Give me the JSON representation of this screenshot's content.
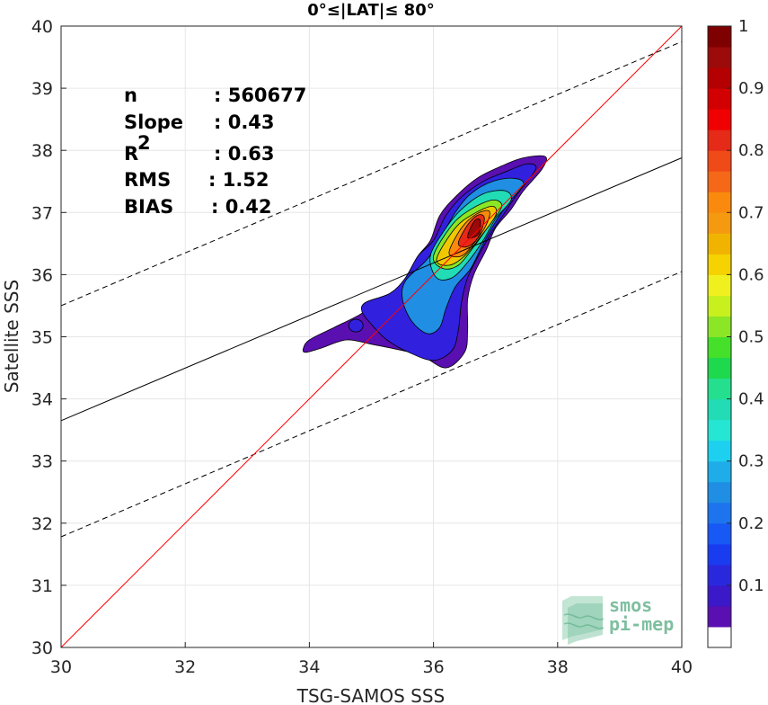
{
  "chart_data": {
    "type": "contour",
    "title": "0°≤|LAT|≤ 80°",
    "xlabel": "TSG-SAMOS SSS",
    "ylabel": "Satellite SSS",
    "xlim": [
      30,
      40
    ],
    "ylim": [
      30,
      40
    ],
    "xticks": [
      "30",
      "32",
      "34",
      "36",
      "38",
      "40"
    ],
    "yticks": [
      "30",
      "31",
      "32",
      "33",
      "34",
      "35",
      "36",
      "37",
      "38",
      "39",
      "40"
    ],
    "grid": true,
    "stats": [
      {
        "key": "n",
        "value": ": 560677"
      },
      {
        "key": "Slope",
        "value": ": 0.43"
      },
      {
        "key": "R",
        "sup": "2",
        "value": ": 0.63"
      },
      {
        "key": "RMS",
        "value": ": 1.52"
      },
      {
        "key": "BIAS",
        "value": ": 0.42"
      }
    ],
    "lines": {
      "one_to_one": {
        "x": [
          30,
          40
        ],
        "y": [
          30,
          40
        ],
        "color": "#ff0000"
      },
      "regression": {
        "x": [
          30,
          40
        ],
        "y": [
          33.65,
          37.88
        ],
        "color": "#000000"
      },
      "upper_bound": {
        "x": [
          30,
          40
        ],
        "y": [
          35.5,
          39.75
        ],
        "color": "#000000",
        "style": "dashed"
      },
      "lower_bound": {
        "x": [
          30,
          40
        ],
        "y": [
          31.78,
          36.05
        ],
        "color": "#000000",
        "style": "dashed"
      }
    },
    "contours": [
      {
        "level": 0.05,
        "color": "#5a0fb0",
        "points": [
          [
            33.9,
            34.8
          ],
          [
            34.0,
            34.95
          ],
          [
            34.4,
            35.15
          ],
          [
            34.8,
            35.35
          ],
          [
            35.1,
            35.55
          ],
          [
            35.35,
            35.7
          ],
          [
            35.55,
            35.95
          ],
          [
            35.75,
            36.3
          ],
          [
            35.95,
            36.55
          ],
          [
            36.1,
            36.95
          ],
          [
            36.35,
            37.25
          ],
          [
            36.7,
            37.55
          ],
          [
            37.1,
            37.75
          ],
          [
            37.45,
            37.88
          ],
          [
            37.8,
            37.9
          ],
          [
            37.75,
            37.7
          ],
          [
            37.45,
            37.35
          ],
          [
            37.25,
            37.05
          ],
          [
            37.0,
            36.75
          ],
          [
            36.85,
            36.4
          ],
          [
            36.65,
            36.0
          ],
          [
            36.55,
            35.6
          ],
          [
            36.55,
            35.1
          ],
          [
            36.5,
            34.75
          ],
          [
            36.2,
            34.5
          ],
          [
            35.8,
            34.7
          ],
          [
            35.4,
            34.8
          ],
          [
            35.0,
            34.88
          ],
          [
            34.6,
            34.95
          ],
          [
            34.2,
            34.82
          ],
          [
            33.95,
            34.75
          ]
        ]
      },
      {
        "level": 0.15,
        "color": "#3120dd",
        "points": [
          [
            34.9,
            35.55
          ],
          [
            35.3,
            35.7
          ],
          [
            35.55,
            35.95
          ],
          [
            35.75,
            36.3
          ],
          [
            36.0,
            36.55
          ],
          [
            36.2,
            36.95
          ],
          [
            36.45,
            37.25
          ],
          [
            36.8,
            37.5
          ],
          [
            37.15,
            37.65
          ],
          [
            37.5,
            37.78
          ],
          [
            37.65,
            37.7
          ],
          [
            37.35,
            37.3
          ],
          [
            37.15,
            37.0
          ],
          [
            36.95,
            36.7
          ],
          [
            36.75,
            36.35
          ],
          [
            36.55,
            35.95
          ],
          [
            36.45,
            35.55
          ],
          [
            36.4,
            35.1
          ],
          [
            36.3,
            34.78
          ],
          [
            36.0,
            34.62
          ],
          [
            35.6,
            34.75
          ],
          [
            35.25,
            34.95
          ],
          [
            35.0,
            35.2
          ],
          [
            34.85,
            35.4
          ]
        ]
      },
      {
        "level": 0.3,
        "color": "#1f8ee3",
        "points": [
          [
            35.55,
            35.9
          ],
          [
            35.9,
            36.25
          ],
          [
            36.15,
            36.65
          ],
          [
            36.35,
            37.0
          ],
          [
            36.6,
            37.3
          ],
          [
            36.95,
            37.5
          ],
          [
            37.3,
            37.55
          ],
          [
            37.45,
            37.45
          ],
          [
            37.2,
            37.15
          ],
          [
            37.0,
            36.85
          ],
          [
            36.8,
            36.5
          ],
          [
            36.6,
            36.1
          ],
          [
            36.35,
            35.8
          ],
          [
            36.2,
            35.45
          ],
          [
            36.1,
            35.15
          ],
          [
            35.9,
            35.05
          ],
          [
            35.65,
            35.25
          ],
          [
            35.5,
            35.6
          ]
        ]
      },
      {
        "level": 0.45,
        "color": "#21dcb5",
        "points": [
          [
            35.95,
            36.3
          ],
          [
            36.2,
            36.75
          ],
          [
            36.45,
            37.05
          ],
          [
            36.8,
            37.3
          ],
          [
            37.15,
            37.35
          ],
          [
            37.25,
            37.2
          ],
          [
            37.0,
            36.9
          ],
          [
            36.8,
            36.55
          ],
          [
            36.55,
            36.2
          ],
          [
            36.3,
            35.95
          ],
          [
            36.05,
            35.95
          ]
        ]
      },
      {
        "level": 0.55,
        "color": "#8be626",
        "points": [
          [
            36.0,
            36.3
          ],
          [
            36.3,
            36.8
          ],
          [
            36.6,
            37.05
          ],
          [
            36.95,
            37.2
          ],
          [
            37.1,
            37.1
          ],
          [
            36.9,
            36.8
          ],
          [
            36.65,
            36.45
          ],
          [
            36.4,
            36.15
          ],
          [
            36.15,
            36.1
          ]
        ]
      },
      {
        "level": 0.65,
        "color": "#f0c800",
        "points": [
          [
            36.05,
            36.25
          ],
          [
            36.35,
            36.75
          ],
          [
            36.65,
            36.98
          ],
          [
            36.95,
            37.1
          ],
          [
            37.0,
            36.95
          ],
          [
            36.75,
            36.6
          ],
          [
            36.5,
            36.3
          ],
          [
            36.25,
            36.15
          ]
        ]
      },
      {
        "level": 0.75,
        "color": "#f98a0e",
        "points": [
          [
            36.25,
            36.35
          ],
          [
            36.45,
            36.75
          ],
          [
            36.7,
            36.98
          ],
          [
            36.9,
            37.02
          ],
          [
            36.85,
            36.8
          ],
          [
            36.65,
            36.5
          ],
          [
            36.45,
            36.3
          ]
        ]
      },
      {
        "level": 0.85,
        "color": "#e52a18",
        "points": [
          [
            36.4,
            36.5
          ],
          [
            36.55,
            36.8
          ],
          [
            36.72,
            36.96
          ],
          [
            36.82,
            36.9
          ],
          [
            36.72,
            36.6
          ],
          [
            36.55,
            36.45
          ]
        ]
      },
      {
        "level": 0.95,
        "color": "#9c0a0a",
        "points": [
          [
            36.55,
            36.6
          ],
          [
            36.65,
            36.85
          ],
          [
            36.75,
            36.88
          ],
          [
            36.72,
            36.65
          ]
        ]
      }
    ],
    "blob": {
      "x": 34.75,
      "y": 35.18,
      "color": "#3120dd"
    },
    "colorbar": {
      "ticks": [
        "0.1",
        "0.2",
        "0.3",
        "0.4",
        "0.5",
        "0.6",
        "0.7",
        "0.8",
        "0.9",
        "1"
      ],
      "colors": [
        "#ffffff",
        "#5a0fb0",
        "#3b18c8",
        "#2a28dd",
        "#1a3cf0",
        "#1858f5",
        "#1d74ee",
        "#1f8ee3",
        "#1fadea",
        "#1ed0f0",
        "#24e6d3",
        "#21dcb5",
        "#24e08e",
        "#1ed94e",
        "#44e02a",
        "#8be626",
        "#c8f01e",
        "#f0f01e",
        "#f5d200",
        "#f0b400",
        "#f59a10",
        "#f98a0e",
        "#f56818",
        "#f04a18",
        "#e52a18",
        "#f00000",
        "#d20000",
        "#b40000",
        "#9c0a0a",
        "#7f0000"
      ]
    }
  },
  "logo": {
    "line1": "smos",
    "line2": "pi-mep"
  }
}
